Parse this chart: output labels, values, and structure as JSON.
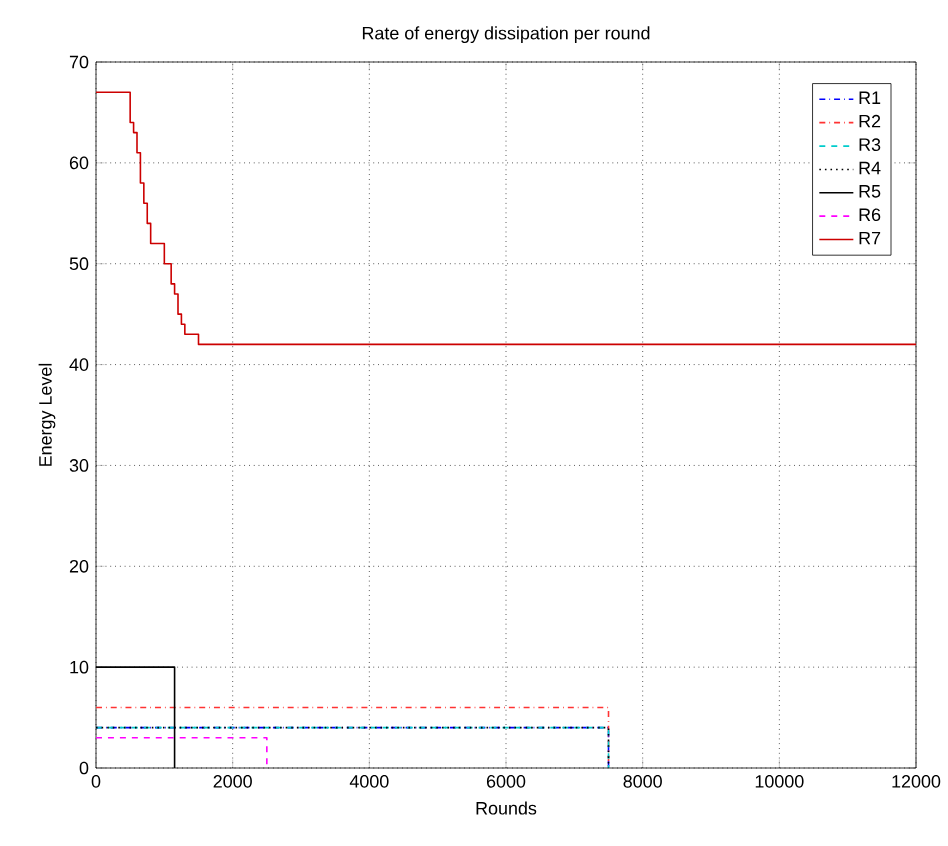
{
  "chart_data": {
    "type": "line",
    "title": "Rate of energy dissipation per round",
    "xlabel": "Rounds",
    "ylabel": "Energy Level",
    "xlim": [
      0,
      12000
    ],
    "ylim": [
      0,
      70
    ],
    "xticks": [
      0,
      2000,
      4000,
      6000,
      8000,
      10000,
      12000
    ],
    "yticks": [
      0,
      10,
      20,
      30,
      40,
      50,
      60,
      70
    ],
    "grid": true,
    "legend": "top right",
    "series": [
      {
        "name": "R1",
        "color": "#0000ff",
        "line_style": "dashdot",
        "x": [
          0,
          7500,
          7500
        ],
        "values": [
          4,
          4,
          0
        ]
      },
      {
        "name": "R2",
        "color": "#ff3333",
        "line_style": "dashdot",
        "x": [
          0,
          7500,
          7500
        ],
        "values": [
          6,
          6,
          0
        ]
      },
      {
        "name": "R3",
        "color": "#00cccc",
        "line_style": "dashed",
        "x": [
          0,
          7500,
          7500
        ],
        "values": [
          4,
          4,
          0
        ]
      },
      {
        "name": "R4",
        "color": "#000000",
        "line_style": "dotted",
        "x": [
          0,
          7500,
          7500
        ],
        "values": [
          4,
          4,
          0
        ]
      },
      {
        "name": "R5",
        "color": "#000000",
        "line_style": "solid",
        "x": [
          0,
          1150,
          1150
        ],
        "values": [
          10,
          10,
          0
        ]
      },
      {
        "name": "R6",
        "color": "#ff00ff",
        "line_style": "dashed",
        "x": [
          0,
          2500,
          2500
        ],
        "values": [
          3,
          3,
          0
        ]
      },
      {
        "name": "R7",
        "color": "#cc0000",
        "line_style": "solid",
        "type": "step",
        "x": [
          0,
          500,
          550,
          600,
          650,
          700,
          750,
          800,
          850,
          1000,
          1100,
          1150,
          1200,
          1250,
          1300,
          1500,
          12000
        ],
        "values": [
          67,
          64,
          63,
          61,
          58,
          56,
          54,
          52,
          52,
          50,
          48,
          47,
          45,
          44,
          43,
          42,
          42
        ]
      }
    ]
  }
}
